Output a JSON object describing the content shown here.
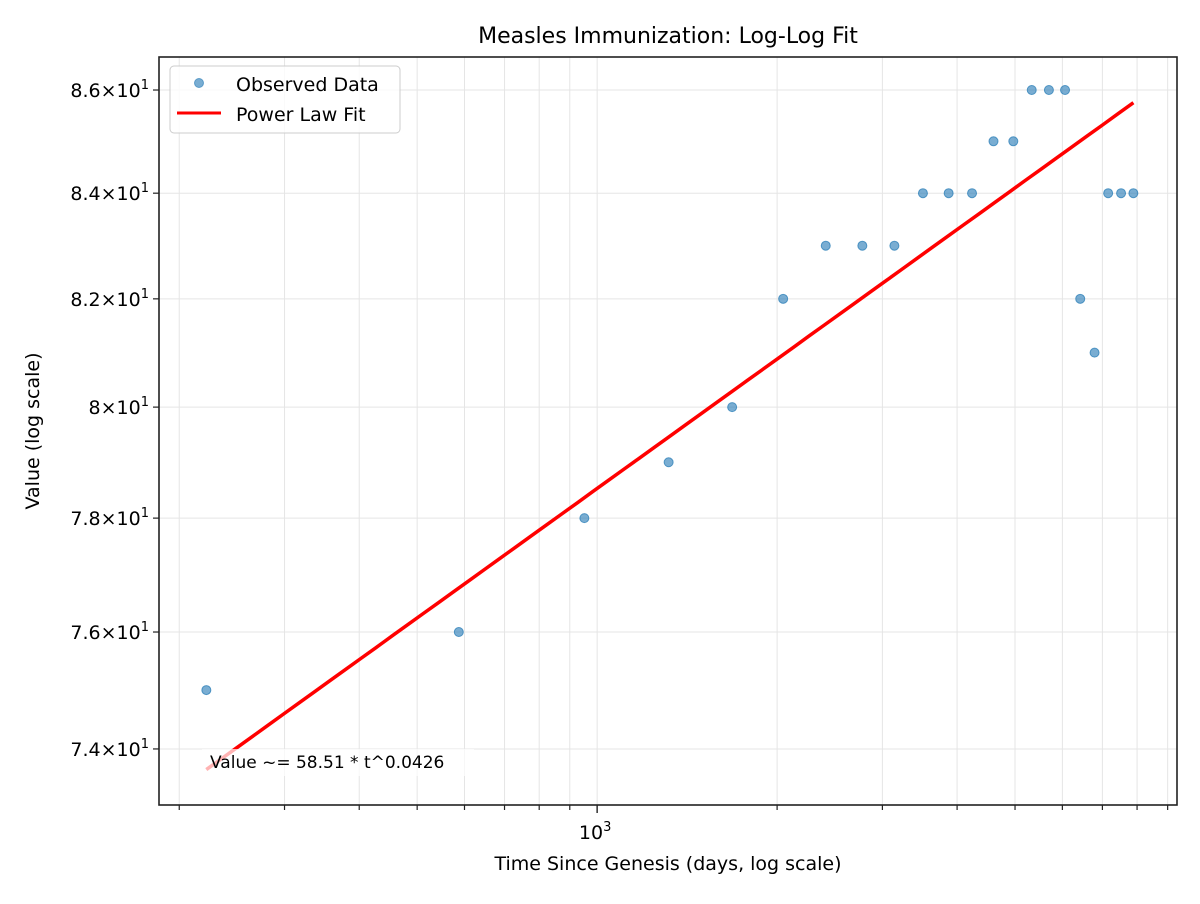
{
  "chart_data": {
    "type": "scatter",
    "title": "Measles Immunization: Log-Log Fit",
    "xlabel": "Time Since Genesis (days, log scale)",
    "ylabel": "Value (log scale)",
    "xscale": "log",
    "yscale": "log",
    "xlim": [
      185,
      9330
    ],
    "ylim": [
      73.06,
      86.65
    ],
    "grid": true,
    "legend_position": "top-left",
    "x_major_ticks": [
      {
        "value": 1000,
        "label": "10",
        "exp": "3"
      }
    ],
    "x_minor_ticks": [
      200,
      300,
      400,
      500,
      600,
      700,
      800,
      900,
      2000,
      3000,
      4000,
      5000,
      6000,
      7000,
      8000,
      9000
    ],
    "y_ticks": [
      {
        "value": 74,
        "mant": "7.4",
        "label": "10",
        "exp": "1"
      },
      {
        "value": 76,
        "mant": "7.6",
        "label": "10",
        "exp": "1"
      },
      {
        "value": 78,
        "mant": "7.8",
        "label": "10",
        "exp": "1"
      },
      {
        "value": 80,
        "mant": "8",
        "label": "10",
        "exp": "1"
      },
      {
        "value": 82,
        "mant": "8.2",
        "label": "10",
        "exp": "1"
      },
      {
        "value": 84,
        "mant": "8.4",
        "label": "10",
        "exp": "1"
      },
      {
        "value": 86,
        "mant": "8.6",
        "label": "10",
        "exp": "1"
      }
    ],
    "series": [
      {
        "name": "Observed Data",
        "kind": "points",
        "color": "#1f77b4",
        "x": [
          222,
          587,
          952,
          1317,
          1682,
          2047,
          2412,
          2777,
          3142,
          3507,
          3872,
          4237,
          4602,
          4967,
          5332,
          5697,
          6062,
          6427,
          6792,
          7157,
          7522,
          7887
        ],
        "y": [
          75,
          76,
          78,
          79,
          80,
          82,
          83,
          83,
          83,
          84,
          84,
          84,
          85,
          85,
          86,
          86,
          86,
          82,
          81,
          84,
          84,
          84
        ]
      },
      {
        "name": "Power Law Fit",
        "kind": "line",
        "color": "#ff0000",
        "coefficient": 58.51,
        "exponent": 0.0426,
        "x_range": [
          222,
          7887
        ]
      }
    ],
    "annotation": "Value ~= 58.51 * t^0.0426"
  }
}
